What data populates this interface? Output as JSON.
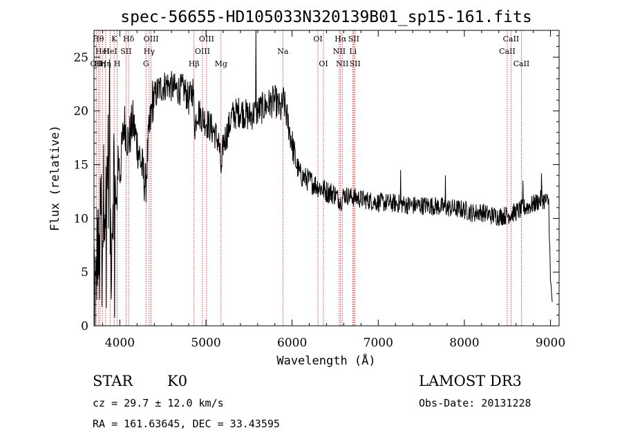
{
  "chart_data": {
    "type": "line",
    "title": "spec-56655-HD105033N320139B01_sp15-161.fits",
    "xlabel": "Wavelength (Å)",
    "ylabel": "Flux (relative)",
    "xlim": [
      3700,
      9100
    ],
    "ylim": [
      0,
      27.5
    ],
    "x_ticks": [
      4000,
      5000,
      6000,
      7000,
      8000,
      9000
    ],
    "y_ticks": [
      0,
      5,
      10,
      15,
      20,
      25
    ],
    "grid": false,
    "line_color": "#000000",
    "marker_color": "#cc0000",
    "spectrum_anchors": [
      [
        3700,
        6
      ],
      [
        3720,
        2
      ],
      [
        3740,
        8
      ],
      [
        3760,
        5
      ],
      [
        3780,
        11
      ],
      [
        3800,
        9
      ],
      [
        3820,
        14
      ],
      [
        3840,
        11
      ],
      [
        3860,
        16
      ],
      [
        3880,
        12
      ],
      [
        3900,
        7
      ],
      [
        3930,
        15
      ],
      [
        3960,
        10
      ],
      [
        3980,
        16
      ],
      [
        4000,
        14
      ],
      [
        4050,
        19
      ],
      [
        4100,
        17
      ],
      [
        4150,
        19
      ],
      [
        4200,
        17
      ],
      [
        4250,
        15
      ],
      [
        4300,
        13
      ],
      [
        4330,
        17
      ],
      [
        4380,
        21
      ],
      [
        4450,
        22
      ],
      [
        4550,
        22.5
      ],
      [
        4650,
        22
      ],
      [
        4750,
        22
      ],
      [
        4800,
        21
      ],
      [
        4850,
        22
      ],
      [
        4870,
        18.5
      ],
      [
        4900,
        20
      ],
      [
        4950,
        19.5
      ],
      [
        5000,
        19
      ],
      [
        5050,
        18.5
      ],
      [
        5100,
        18
      ],
      [
        5150,
        17
      ],
      [
        5180,
        14
      ],
      [
        5200,
        17
      ],
      [
        5250,
        18
      ],
      [
        5300,
        19.5
      ],
      [
        5400,
        20
      ],
      [
        5500,
        19.5
      ],
      [
        5600,
        20
      ],
      [
        5700,
        20.5
      ],
      [
        5800,
        21
      ],
      [
        5870,
        20
      ],
      [
        5900,
        21
      ],
      [
        5950,
        19
      ],
      [
        6000,
        17
      ],
      [
        6050,
        15
      ],
      [
        6100,
        14
      ],
      [
        6200,
        13.5
      ],
      [
        6300,
        13
      ],
      [
        6400,
        12.5
      ],
      [
        6500,
        12.3
      ],
      [
        6563,
        11.5
      ],
      [
        6600,
        12.2
      ],
      [
        6700,
        12
      ],
      [
        6800,
        11.8
      ],
      [
        7000,
        11.5
      ],
      [
        7200,
        11.4
      ],
      [
        7400,
        11.2
      ],
      [
        7600,
        11.2
      ],
      [
        7800,
        11
      ],
      [
        8000,
        10.8
      ],
      [
        8100,
        10.5
      ],
      [
        8200,
        10.6
      ],
      [
        8300,
        10.3
      ],
      [
        8400,
        10.2
      ],
      [
        8500,
        10.3
      ],
      [
        8600,
        10.6
      ],
      [
        8700,
        11
      ],
      [
        8800,
        11.3
      ],
      [
        8900,
        11.8
      ],
      [
        8980,
        11.5
      ],
      [
        9000,
        4
      ],
      [
        9020,
        2.5
      ]
    ],
    "spectrum_spikes": [
      [
        5580,
        27.5
      ],
      [
        3880,
        24.8
      ],
      [
        8680,
        13.5
      ],
      [
        8895,
        14.2
      ],
      [
        7260,
        14.5
      ],
      [
        7780,
        14
      ]
    ],
    "line_markers": [
      {
        "wavelength": 3727,
        "label": "OII",
        "row": 2
      },
      {
        "wavelength": 3750,
        "label": "Hθ",
        "row": 0
      },
      {
        "wavelength": 3770,
        "label": "Hη",
        "row": 2
      },
      {
        "wavelength": 3798,
        "label": "HeI",
        "row": 1
      },
      {
        "wavelength": 3835,
        "label": "Hη",
        "row": 2
      },
      {
        "wavelength": 3889,
        "label": "HeI",
        "row": 1
      },
      {
        "wavelength": 3934,
        "label": "K",
        "row": 0
      },
      {
        "wavelength": 3969,
        "label": "H",
        "row": 2
      },
      {
        "wavelength": 4072,
        "label": "SII",
        "row": 1
      },
      {
        "wavelength": 4102,
        "label": "Hδ",
        "row": 0
      },
      {
        "wavelength": 4304,
        "label": "G",
        "row": 2
      },
      {
        "wavelength": 4341,
        "label": "Hγ",
        "row": 1
      },
      {
        "wavelength": 4363,
        "label": "OIII",
        "row": 0
      },
      {
        "wavelength": 4861,
        "label": "Hβ",
        "row": 2
      },
      {
        "wavelength": 4959,
        "label": "OIII",
        "row": 1
      },
      {
        "wavelength": 5007,
        "label": "OIII",
        "row": 0
      },
      {
        "wavelength": 5175,
        "label": "Mg",
        "row": 2
      },
      {
        "wavelength": 5893,
        "label": "Na",
        "row": 1
      },
      {
        "wavelength": 6300,
        "label": "OI",
        "row": 0
      },
      {
        "wavelength": 6364,
        "label": "OI",
        "row": 2
      },
      {
        "wavelength": 6548,
        "label": "NII",
        "row": 1
      },
      {
        "wavelength": 6563,
        "label": "Hα",
        "row": 0
      },
      {
        "wavelength": 6583,
        "label": "NII",
        "row": 2
      },
      {
        "wavelength": 6707,
        "label": "Li",
        "row": 1
      },
      {
        "wavelength": 6716,
        "label": "SII",
        "row": 0
      },
      {
        "wavelength": 6731,
        "label": "SII",
        "row": 2
      },
      {
        "wavelength": 8498,
        "label": "CaII",
        "row": 1
      },
      {
        "wavelength": 8542,
        "label": "CaII",
        "row": 0
      },
      {
        "wavelength": 8662,
        "label": "CaII",
        "row": 2
      }
    ]
  },
  "info": {
    "object_class": "STAR",
    "subclass": "K0",
    "survey": "LAMOST DR3",
    "redshift": "cz = 29.7 ± 12.0 km/s",
    "obs_date": "Obs-Date: 20131228",
    "coords": "RA = 161.63645, DEC =  33.43595"
  }
}
